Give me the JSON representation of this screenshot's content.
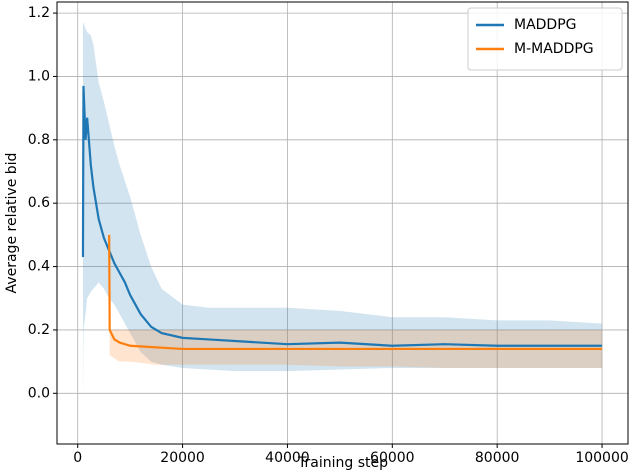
{
  "chart_data": {
    "type": "line",
    "xlabel": "Training step",
    "ylabel": "Average relative bid",
    "xlim": [
      -3950,
      104950
    ],
    "ylim": [
      -0.16,
      1.235
    ],
    "xticks": [
      0,
      20000,
      40000,
      60000,
      80000,
      100000
    ],
    "yticks": [
      {
        "value": 0,
        "label": "0.0"
      },
      0.2,
      0.4,
      0.6,
      0.8,
      {
        "value": 1,
        "label": "1.0"
      },
      1.2
    ],
    "grid": true,
    "legend": "upper right",
    "series": [
      {
        "name": "MADDPG",
        "color": "#1f77b4",
        "x": [
          1000,
          1100,
          1500,
          1800,
          2500,
          3000,
          4000,
          5000,
          6000,
          7000,
          8000,
          9000,
          10000,
          12000,
          14000,
          16000,
          20000,
          25000,
          30000,
          40000,
          50000,
          60000,
          70000,
          80000,
          90000,
          100000
        ],
        "values": [
          0.43,
          0.97,
          0.8,
          0.87,
          0.72,
          0.65,
          0.55,
          0.49,
          0.45,
          0.41,
          0.38,
          0.35,
          0.31,
          0.25,
          0.21,
          0.19,
          0.175,
          0.17,
          0.165,
          0.155,
          0.16,
          0.15,
          0.155,
          0.15,
          0.15,
          0.15
        ],
        "lower": [
          -0.03,
          0.2,
          0.25,
          0.3,
          0.32,
          0.33,
          0.35,
          0.33,
          0.3,
          0.28,
          0.25,
          0.22,
          0.19,
          0.13,
          0.1,
          0.09,
          0.08,
          0.075,
          0.07,
          0.07,
          0.075,
          0.08,
          0.08,
          0.08,
          0.08,
          0.08
        ],
        "upper": [
          1.17,
          1.17,
          1.15,
          1.14,
          1.13,
          1.1,
          0.98,
          0.92,
          0.85,
          0.78,
          0.72,
          0.67,
          0.62,
          0.5,
          0.4,
          0.33,
          0.28,
          0.27,
          0.27,
          0.27,
          0.26,
          0.24,
          0.24,
          0.23,
          0.23,
          0.22
        ]
      },
      {
        "name": "M-MADDPG",
        "color": "#ff7f0e",
        "x": [
          6000,
          6100,
          7000,
          8000,
          10000,
          15000,
          20000,
          30000,
          40000,
          50000,
          60000,
          70000,
          80000,
          90000,
          100000
        ],
        "values": [
          0.5,
          0.2,
          0.17,
          0.16,
          0.15,
          0.145,
          0.14,
          0.14,
          0.14,
          0.14,
          0.14,
          0.14,
          0.14,
          0.14,
          0.14
        ],
        "lower": [
          0.5,
          0.12,
          0.11,
          0.1,
          0.1,
          0.09,
          0.09,
          0.09,
          0.09,
          0.085,
          0.085,
          0.08,
          0.08,
          0.08,
          0.08
        ],
        "upper": [
          0.5,
          0.2,
          0.2,
          0.2,
          0.2,
          0.2,
          0.2,
          0.2,
          0.2,
          0.2,
          0.2,
          0.2,
          0.2,
          0.2,
          0.2
        ]
      }
    ]
  }
}
